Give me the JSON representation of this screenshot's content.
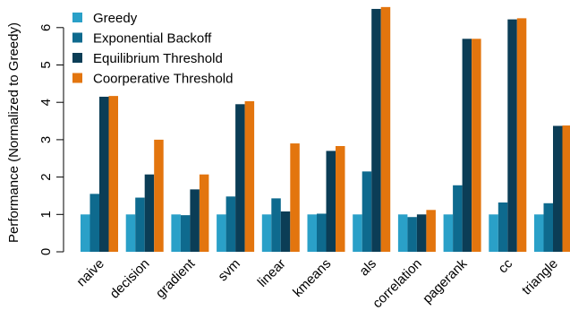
{
  "chart_data": {
    "type": "bar",
    "title": "",
    "xlabel": "",
    "ylabel": "Performance (Normalized to Greedy)",
    "ylim": [
      0,
      6.5
    ],
    "yticks": [
      0,
      1,
      2,
      3,
      4,
      5,
      6
    ],
    "grid": false,
    "legend_position": "top-left",
    "categories": [
      "naive",
      "decision",
      "gradient",
      "svm",
      "linear",
      "kmeans",
      "als",
      "correlation",
      "pagerank",
      "cc",
      "triangle"
    ],
    "series": [
      {
        "name": "Greedy",
        "color": "#2aa0c8",
        "values": [
          1,
          1,
          1,
          1,
          1,
          1,
          1,
          1,
          1,
          1,
          1
        ]
      },
      {
        "name": "Exponential Backoff",
        "color": "#0e6a8e",
        "values": [
          1.55,
          1.45,
          0.98,
          1.48,
          1.43,
          1.02,
          2.15,
          0.93,
          1.78,
          1.32,
          1.3
        ]
      },
      {
        "name": "Equilibrium Threshold",
        "color": "#0b3d56",
        "values": [
          4.15,
          2.07,
          1.67,
          3.95,
          1.08,
          2.7,
          6.5,
          1.0,
          5.7,
          6.22,
          3.37
        ]
      },
      {
        "name": "Coorperative Threshold",
        "color": "#e3750e",
        "values": [
          4.17,
          3.0,
          2.07,
          4.03,
          2.9,
          2.83,
          6.55,
          1.12,
          5.7,
          6.25,
          3.38
        ]
      }
    ]
  }
}
